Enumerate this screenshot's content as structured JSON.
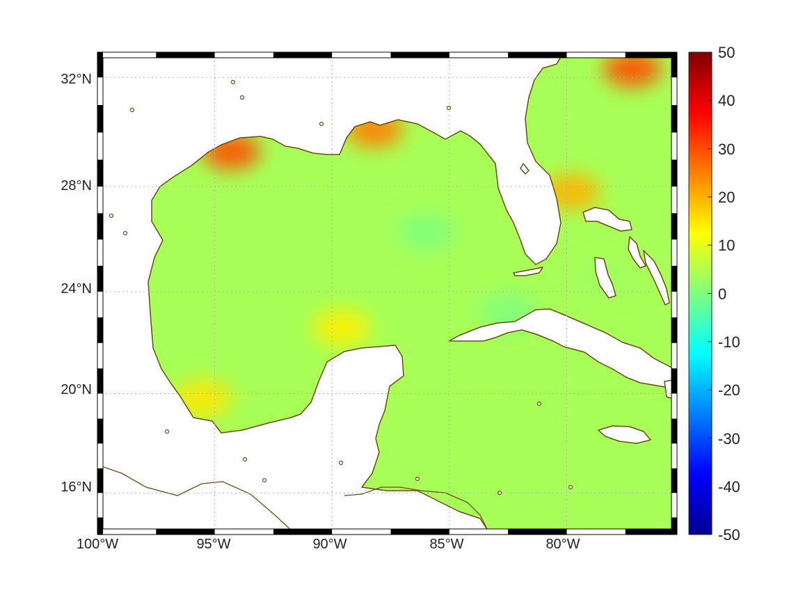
{
  "map": {
    "projection": "mercator",
    "extent": {
      "lon": [
        -100,
        -75.3
      ],
      "lat": [
        14.3,
        32.9
      ]
    },
    "x_ticks": [
      {
        "value": -100,
        "label": "100°W"
      },
      {
        "value": -95,
        "label": "95°W"
      },
      {
        "value": -90,
        "label": "90°W"
      },
      {
        "value": -85,
        "label": "85°W"
      },
      {
        "value": -80,
        "label": "80°W"
      }
    ],
    "y_ticks": [
      {
        "value": 16,
        "label": "16°N"
      },
      {
        "value": 20,
        "label": "20°N"
      },
      {
        "value": 24,
        "label": "24°N"
      },
      {
        "value": 28,
        "label": "28°N"
      },
      {
        "value": 32,
        "label": "32°N"
      }
    ],
    "frame_tick_step_deg": 2.5,
    "grid": true,
    "coastline_color": "#6b4a10",
    "land_color": "#ffffff",
    "ocean_base_value": 4
  },
  "colorbar": {
    "colormap": "jet",
    "range": [
      -50,
      50
    ],
    "labels": [
      "50",
      "40",
      "30",
      "20",
      "10",
      "0",
      "-10",
      "-20",
      "-30",
      "-40",
      "-50"
    ]
  },
  "field": {
    "anomalies": [
      {
        "lon": -94.3,
        "lat": 29.3,
        "value": 30
      },
      {
        "lon": -88.2,
        "lat": 30.1,
        "value": 25
      },
      {
        "lon": -77.2,
        "lat": 32.3,
        "value": 30
      },
      {
        "lon": -79.8,
        "lat": 27.8,
        "value": 20
      },
      {
        "lon": -95.5,
        "lat": 19.8,
        "value": 15
      },
      {
        "lon": -89.6,
        "lat": 22.6,
        "value": 14
      },
      {
        "lon": -86.0,
        "lat": 26.3,
        "value": 0
      },
      {
        "lon": -82.5,
        "lat": 23.2,
        "value": 0
      },
      {
        "lon": -78.5,
        "lat": 24.5,
        "value": 3
      }
    ]
  }
}
